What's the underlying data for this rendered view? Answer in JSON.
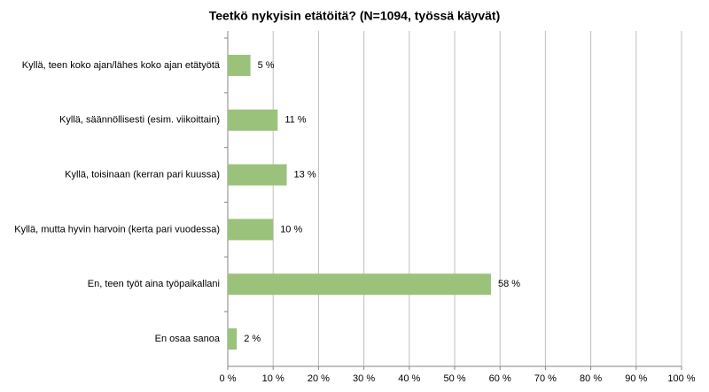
{
  "chart_data": {
    "type": "bar",
    "title": "Teetkö nykyisin etätöitä? (N=1094, työssä käyvät)",
    "categories": [
      "Kyllä, teen koko ajan/lähes koko ajan etätyötä",
      "Kyllä, säännöllisesti (esim. viikoittain)",
      "Kyllä, toisinaan (kerran pari kuussa)",
      "Kyllä, mutta hyvin harvoin (kerta pari vuodessa)",
      "En, teen työt aina työpaikallani",
      "En osaa sanoa"
    ],
    "values": [
      5,
      11,
      13,
      10,
      58,
      2
    ],
    "value_labels": [
      "5 %",
      "11 %",
      "13 %",
      "10 %",
      "58 %",
      "2 %"
    ],
    "color": "#9bc27b",
    "xlim": [
      0,
      100
    ],
    "xticks": [
      {
        "value": 0,
        "label": "0 %"
      },
      {
        "value": 10,
        "label": "10 %"
      },
      {
        "value": 20,
        "label": "20 %"
      },
      {
        "value": 30,
        "label": "30 %"
      },
      {
        "value": 40,
        "label": "40 %"
      },
      {
        "value": 50,
        "label": "50 %"
      },
      {
        "value": 60,
        "label": "60 %"
      },
      {
        "value": 70,
        "label": "70 %"
      },
      {
        "value": 80,
        "label": "80 %"
      },
      {
        "value": 90,
        "label": "90 %"
      },
      {
        "value": 100,
        "label": "100 %"
      }
    ],
    "grid": true
  }
}
